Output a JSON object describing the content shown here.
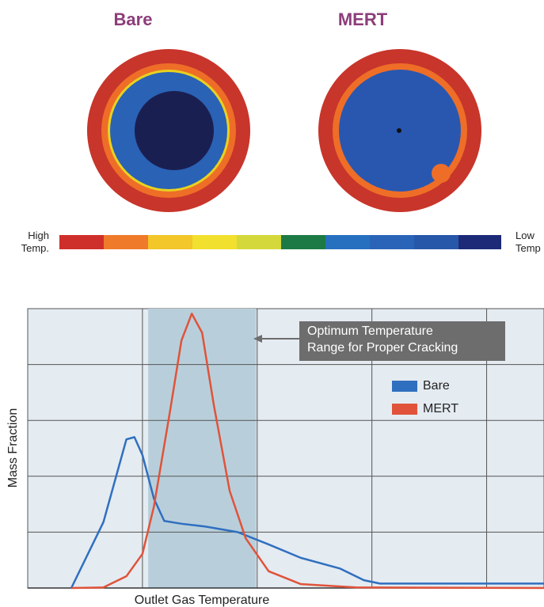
{
  "images": {
    "labels": [
      "Bare",
      "MERT"
    ]
  },
  "color_scale": {
    "high_label": "High Temp.",
    "low_label": "Low Temp"
  },
  "chart_data": {
    "type": "line",
    "x_label": "Outlet Gas Temperature",
    "y_label": "Mass Fraction",
    "annotation": [
      "Optimum Temperature",
      "Range for Proper Cracking"
    ],
    "highlight_range": [
      1.05,
      1.99
    ],
    "xlim": [
      0,
      4.5
    ],
    "xticks": [
      1,
      2,
      3,
      4
    ],
    "ylim": [
      0,
      5
    ],
    "yticks": [
      1,
      2,
      3,
      4
    ],
    "grid": true,
    "series": [
      {
        "name": "Bare",
        "color": "#2f6fbf",
        "x": [
          0.38,
          0.66,
          0.86,
          0.93,
          1.0,
          1.1,
          1.19,
          1.34,
          1.55,
          1.83,
          2.1,
          2.38,
          2.72,
          2.93,
          3.07,
          4.5
        ],
        "values": [
          0,
          1.18,
          2.66,
          2.7,
          2.38,
          1.6,
          1.2,
          1.15,
          1.1,
          1.0,
          0.78,
          0.54,
          0.35,
          0.14,
          0.08,
          0.08
        ]
      },
      {
        "name": "MERT",
        "color": "#e0533a",
        "x": [
          0.38,
          0.66,
          0.86,
          1.0,
          1.1,
          1.24,
          1.34,
          1.43,
          1.52,
          1.62,
          1.76,
          1.9,
          2.1,
          2.38,
          2.86,
          4.5
        ],
        "values": [
          0,
          0.01,
          0.21,
          0.61,
          1.46,
          3.16,
          4.43,
          4.91,
          4.57,
          3.3,
          1.74,
          0.89,
          0.3,
          0.07,
          0.01,
          0
        ]
      }
    ]
  }
}
